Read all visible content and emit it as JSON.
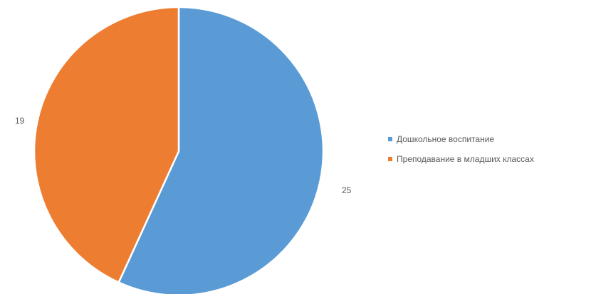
{
  "chart_data": {
    "type": "pie",
    "categories": [
      "Дошкольное воспитание",
      "Преподавание в младших классах"
    ],
    "values": [
      25,
      19
    ],
    "colors": [
      "#5b9bd5",
      "#ed7d31"
    ],
    "data_labels": [
      "25",
      "19"
    ],
    "start_angle_deg": 0,
    "direction": "clockwise",
    "slice_border_color": "#ffffff",
    "legend": {
      "position": "right",
      "entries": [
        {
          "label": "Дошкольное воспитание",
          "color": "#5b9bd5"
        },
        {
          "label": "Преподавание в младших классах",
          "color": "#ed7d31"
        }
      ]
    }
  }
}
